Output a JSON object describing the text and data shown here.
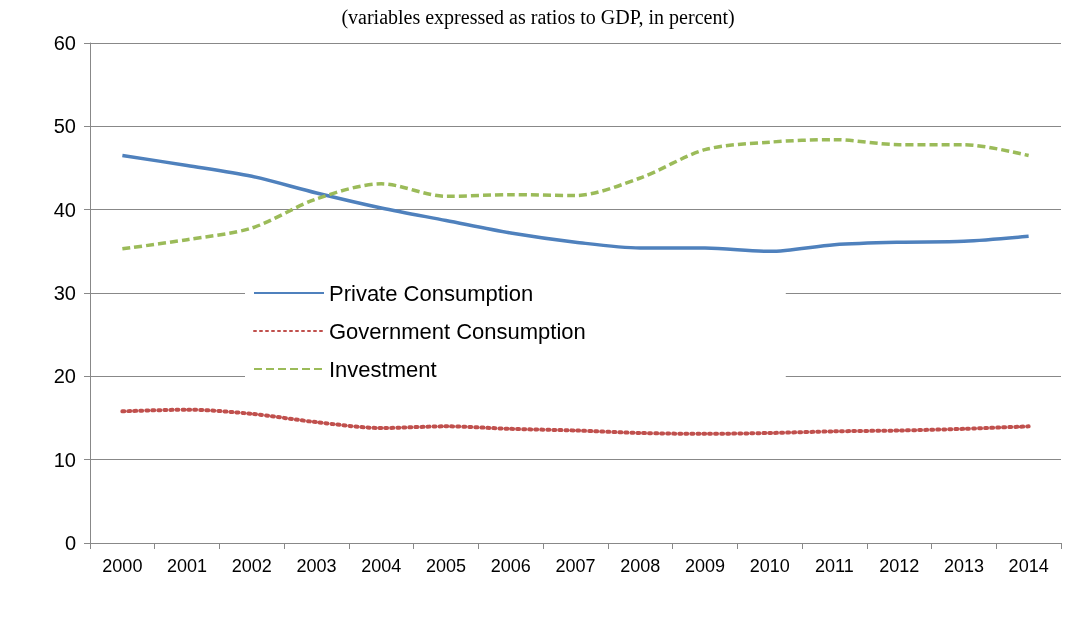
{
  "chart_data": {
    "type": "line",
    "title": "(variables expressed as ratios to GDP, in percent)",
    "categories": [
      "2000",
      "2001",
      "2002",
      "2003",
      "2004",
      "2005",
      "2006",
      "2007",
      "2008",
      "2009",
      "2010",
      "2011",
      "2012",
      "2013",
      "2014"
    ],
    "series": [
      {
        "name": "Private Consumption",
        "color": "#4f81bd",
        "line_style": "solid",
        "values": [
          46.5,
          45.3,
          44.0,
          42.0,
          40.2,
          38.7,
          37.2,
          36.1,
          35.4,
          35.4,
          35.0,
          35.8,
          36.1,
          36.2,
          36.8
        ]
      },
      {
        "name": "Government Consumption",
        "color": "#c0504d",
        "line_style": "dotted",
        "values": [
          15.8,
          16.0,
          15.5,
          14.5,
          13.8,
          14.0,
          13.7,
          13.5,
          13.2,
          13.1,
          13.2,
          13.4,
          13.5,
          13.7,
          14.0
        ]
      },
      {
        "name": "Investment",
        "color": "#9bbb59",
        "line_style": "dashed",
        "values": [
          35.3,
          36.4,
          37.8,
          41.3,
          43.1,
          41.6,
          41.8,
          41.7,
          43.8,
          47.2,
          48.1,
          48.4,
          47.8,
          47.8,
          46.5
        ]
      }
    ],
    "ylim": [
      0,
      60
    ],
    "yticks": [
      0,
      10,
      20,
      30,
      40,
      50,
      60
    ],
    "grid": "y",
    "legend": "center",
    "marker": "none"
  }
}
